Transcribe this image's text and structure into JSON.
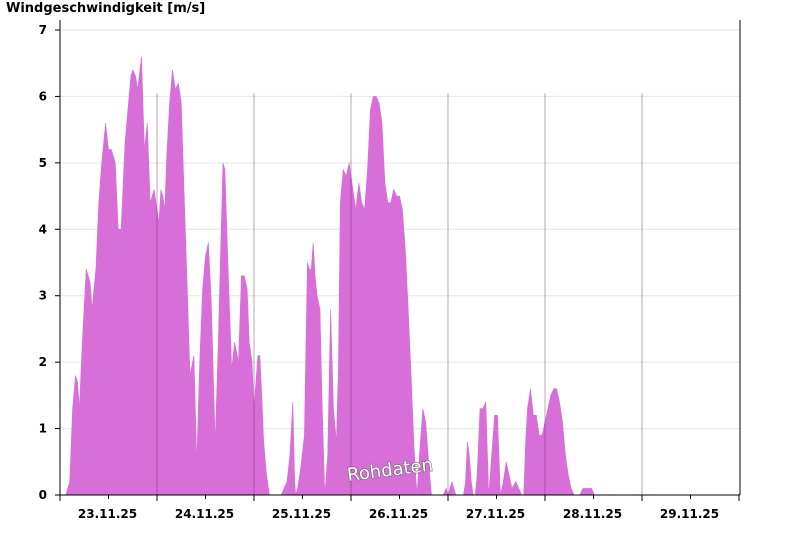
{
  "chart_data": {
    "type": "area",
    "ylabel": "Windgeschwindigkeit [m/s]",
    "ylim": [
      0,
      7
    ],
    "yticks": [
      0,
      1,
      2,
      3,
      4,
      5,
      6,
      7
    ],
    "xlabels": [
      "23.11.25",
      "24.11.25",
      "25.11.25",
      "26.11.25",
      "27.11.25",
      "28.11.25",
      "29.11.25"
    ],
    "annotation": "Rohdaten",
    "grid": "horizontal",
    "color": "#d86fd8",
    "series": [
      {
        "x": [
          0.0,
          0.06,
          0.1,
          0.13,
          0.16,
          0.18,
          0.2,
          0.23,
          0.27,
          0.31,
          0.33,
          0.37,
          0.4,
          0.43,
          0.47,
          0.5,
          0.53,
          0.57,
          0.6,
          0.63,
          0.67,
          0.7,
          0.73,
          0.75,
          0.78,
          0.8,
          0.84,
          0.87,
          0.9,
          0.93,
          0.97,
          1.0,
          1.02,
          1.04,
          1.06,
          1.08,
          1.1,
          1.13,
          1.16,
          1.19,
          1.22,
          1.25,
          1.28,
          1.31,
          1.34,
          1.38,
          1.41,
          1.44,
          1.47,
          1.5,
          1.53,
          1.56,
          1.6,
          1.63,
          1.66,
          1.68,
          1.7,
          1.74,
          1.77,
          1.8,
          1.84,
          1.87,
          1.9,
          1.93,
          1.95,
          1.98,
          2.0,
          2.02,
          2.04,
          2.06,
          2.08,
          2.1,
          2.13,
          2.16,
          2.19,
          2.22,
          2.25,
          2.28,
          2.31,
          2.34,
          2.37,
          2.4,
          2.42,
          2.43,
          2.45,
          2.48,
          2.52,
          2.55,
          2.57,
          2.59,
          2.61,
          2.63,
          2.65,
          2.68,
          2.7,
          2.73,
          2.76,
          2.79,
          2.82,
          2.85,
          2.87,
          2.89,
          2.92,
          2.95,
          2.98,
          3.0,
          3.02,
          3.05,
          3.08,
          3.11,
          3.14,
          3.17,
          3.2,
          3.23,
          3.26,
          3.29,
          3.32,
          3.35,
          3.38,
          3.41,
          3.44,
          3.47,
          3.5,
          3.53,
          3.56,
          3.59,
          3.62,
          3.65,
          3.68,
          3.71,
          3.74,
          3.77,
          3.8,
          3.83,
          3.86,
          3.89,
          3.92,
          3.95,
          3.98,
          4.0,
          4.02,
          4.04,
          4.06,
          4.08,
          4.1,
          4.12,
          4.14,
          4.16,
          4.18,
          4.2,
          4.22,
          4.24,
          4.26,
          4.28,
          4.3,
          4.33,
          4.36,
          4.39,
          4.42,
          4.45,
          4.48,
          4.51,
          4.54,
          4.57,
          4.6,
          4.63,
          4.66,
          4.7,
          4.73,
          4.76,
          4.78,
          4.8,
          4.82,
          4.85,
          4.88,
          4.91,
          4.94,
          4.97,
          5.0,
          5.03,
          5.06,
          5.09,
          5.12,
          5.15,
          5.18,
          5.21,
          5.24,
          5.27,
          5.3,
          5.33,
          5.36,
          5.39,
          5.42,
          5.45,
          5.48,
          5.51,
          5.54,
          5.57,
          5.6,
          5.63,
          5.66,
          5.69,
          5.72,
          5.75,
          5.78,
          5.81,
          5.84,
          5.87,
          5.9,
          5.93,
          5.96,
          5.99,
          6.0,
          6.03,
          6.06,
          6.09,
          6.12,
          6.15,
          6.18,
          6.21,
          6.24,
          6.27,
          6.3,
          6.33,
          6.36,
          6.39,
          6.42,
          6.45,
          6.48,
          6.51,
          6.54,
          6.57,
          6.6,
          6.63,
          6.66,
          6.69,
          6.72,
          6.75,
          6.78,
          6.81,
          6.84,
          6.87,
          6.9,
          6.93,
          6.96,
          6.99
        ],
        "y": [
          0,
          0,
          0.2,
          1.3,
          1.8,
          1.7,
          1.3,
          2.3,
          3.4,
          3.2,
          2.8,
          3.4,
          4.4,
          5.0,
          5.6,
          5.2,
          5.2,
          5.0,
          4.0,
          4.0,
          5.3,
          5.8,
          6.3,
          6.4,
          6.3,
          6.1,
          6.6,
          5.2,
          5.6,
          4.4,
          4.6,
          4.3,
          4.1,
          4.6,
          4.5,
          4.3,
          5.1,
          5.9,
          6.4,
          6.1,
          6.2,
          5.9,
          4.5,
          3.2,
          1.8,
          2.1,
          0.5,
          2.0,
          3.1,
          3.6,
          3.8,
          2.9,
          0.8,
          2.2,
          3.9,
          5.0,
          4.9,
          3.1,
          1.9,
          2.3,
          2.0,
          3.3,
          3.3,
          3.1,
          2.3,
          2.0,
          1.3,
          1.7,
          2.1,
          2.1,
          1.5,
          0.8,
          0.3,
          0,
          0,
          0,
          0,
          0,
          0.1,
          0.2,
          0.6,
          1.4,
          0.2,
          0,
          0.1,
          0.4,
          0.9,
          3.5,
          3.4,
          3.4,
          3.8,
          3.3,
          3.0,
          2.8,
          1.5,
          0,
          0.6,
          2.8,
          1.3,
          0.8,
          1.9,
          4.4,
          4.9,
          4.8,
          5.0,
          4.8,
          4.6,
          4.3,
          4.7,
          4.4,
          4.3,
          4.9,
          5.8,
          6.0,
          6.0,
          5.9,
          5.6,
          4.7,
          4.4,
          4.4,
          4.6,
          4.5,
          4.5,
          4.3,
          3.7,
          2.8,
          1.8,
          0.7,
          0,
          0.7,
          1.3,
          1.1,
          0.5,
          0,
          0,
          0,
          0,
          0,
          0.1,
          0,
          0.1,
          0.2,
          0.1,
          0,
          0,
          0,
          0,
          0,
          0.2,
          0.8,
          0.6,
          0.2,
          0,
          0,
          0.3,
          1.3,
          1.3,
          1.4,
          0,
          0.6,
          1.2,
          1.2,
          0,
          0.2,
          0.5,
          0.3,
          0.1,
          0.2,
          0.1,
          0,
          0,
          0.8,
          1.3,
          1.6,
          1.2,
          1.2,
          0.9,
          0.9,
          1.1,
          1.3,
          1.5,
          1.6,
          1.6,
          1.4,
          1.1,
          0.6,
          0.3,
          0.1,
          0,
          0,
          0,
          0.1,
          0.1,
          0.1,
          0.1,
          0,
          0,
          0,
          0,
          0,
          0,
          0,
          0,
          0,
          0,
          0,
          0,
          0,
          0,
          0,
          0,
          0,
          0,
          0,
          0,
          0,
          0,
          0,
          0,
          0,
          0,
          0,
          0,
          0,
          0,
          0,
          0,
          0,
          0,
          0,
          0,
          0,
          0,
          0,
          0,
          0,
          0,
          0,
          0,
          0,
          0,
          0,
          0,
          0,
          0,
          0
        ]
      }
    ]
  }
}
